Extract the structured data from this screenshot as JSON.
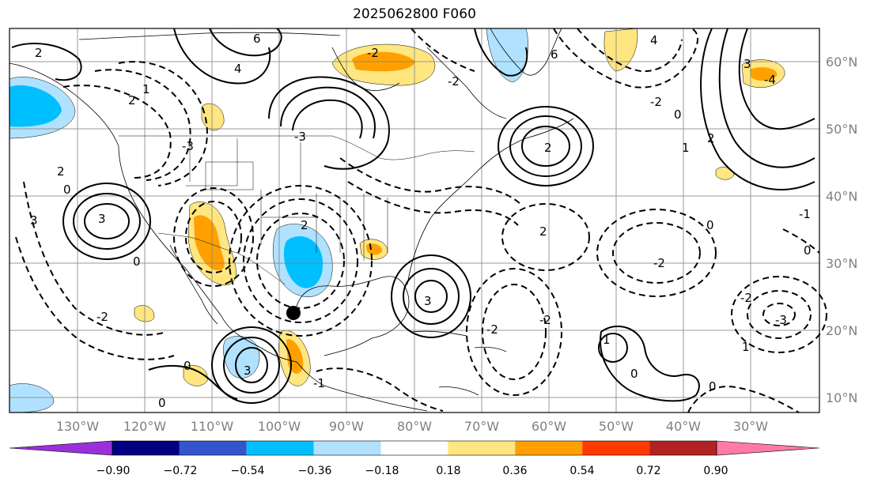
{
  "title": "2025062800 F060",
  "colors": {
    "ocean": "#ffffff",
    "coast": "#000000",
    "grid": "#808080",
    "contour": "#000000",
    "marker": "#000000"
  },
  "lon_labels": [
    "130°W",
    "120°W",
    "110°W",
    "100°W",
    "90°W",
    "80°W",
    "70°W",
    "60°W",
    "50°W",
    "40°W",
    "30°W"
  ],
  "lat_labels": [
    "60°N",
    "50°N",
    "40°N",
    "30°N",
    "20°N",
    "10°N"
  ],
  "colorbar": {
    "ticks": [
      "−0.90",
      "−0.72",
      "−0.54",
      "−0.36",
      "−0.18",
      "0.18",
      "0.36",
      "0.54",
      "0.72",
      "0.90"
    ],
    "colors": [
      "#9b30d9",
      "#000080",
      "#3355cc",
      "#00bfff",
      "#b0e2ff",
      "#ffffff",
      "#ffe680",
      "#ffa000",
      "#ff3a00",
      "#b22222",
      "#ff7aa8"
    ]
  },
  "contour_labels": [
    "3",
    "2",
    "1",
    "0",
    "-1",
    "-2",
    "-3",
    "4",
    "6",
    "-4"
  ],
  "marker_label": "point-marker"
}
